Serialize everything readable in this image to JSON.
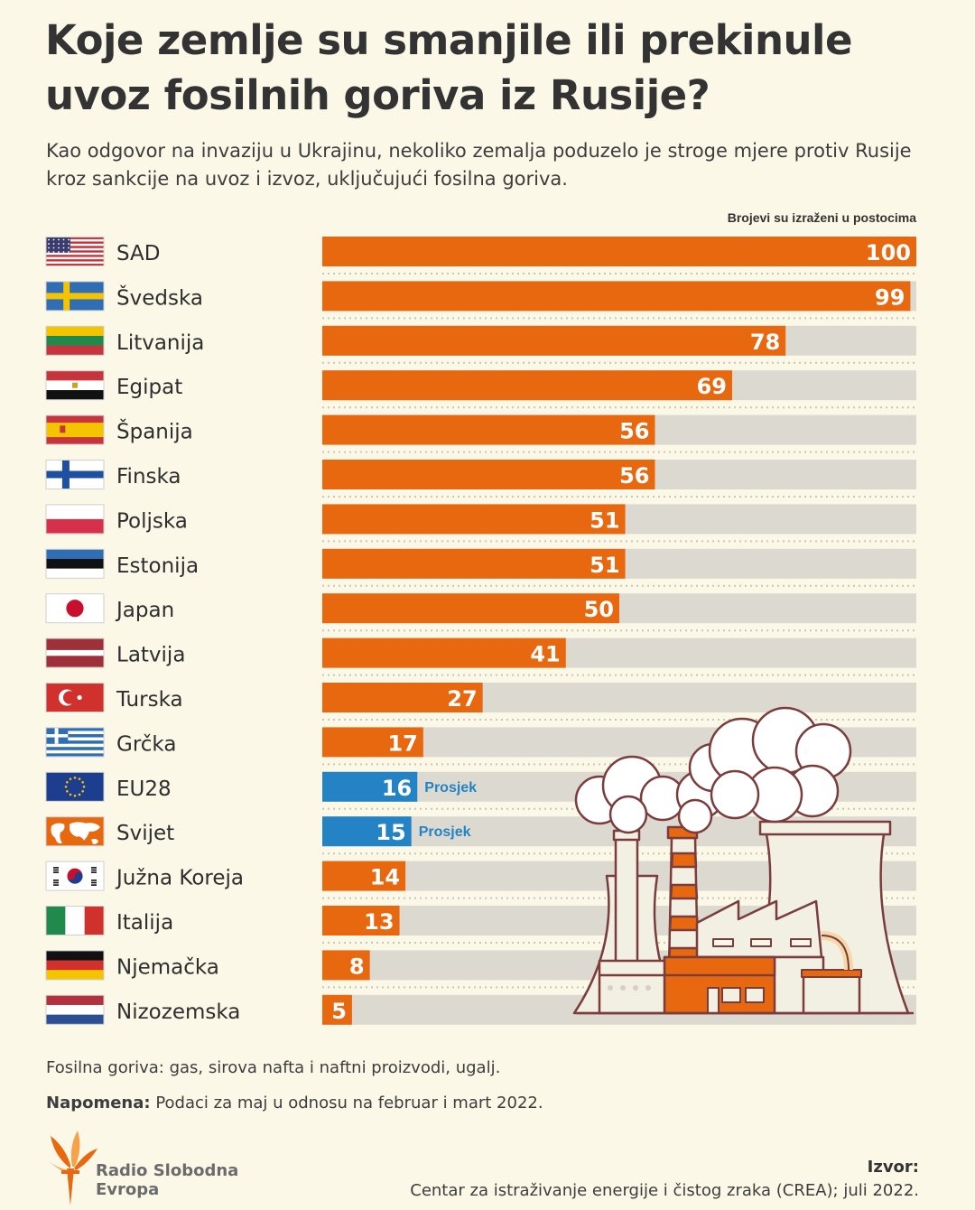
{
  "title": "Koje zemlje su smanjile ili prekinule uvoz fosilnih goriva iz Rusije?",
  "subtitle": "Kao odgovor na invaziju u Ukrajinu, nekoliko zemalja poduzelo je stroge mjere protiv Rusije kroz sankcije na uvoz i izvoz, uključujući fosilna goriva.",
  "unit_note": "Brojevi su izraženi u postocima",
  "colors": {
    "bar": "#e8680f",
    "average_bar": "#2383c4",
    "track": "#dcdad0",
    "background": "#fbf8e8"
  },
  "chart_data": {
    "type": "bar",
    "orientation": "horizontal",
    "xlim": [
      0,
      100
    ],
    "categories": [
      "SAD",
      "Švedska",
      "Litvanija",
      "Egipat",
      "Španija",
      "Finska",
      "Poljska",
      "Estonija",
      "Japan",
      "Latvija",
      "Turska",
      "Grčka",
      "EU28",
      "Svijet",
      "Južna Koreja",
      "Italija",
      "Njemačka",
      "Nizozemska"
    ],
    "values": [
      100,
      99,
      78,
      69,
      56,
      56,
      51,
      51,
      50,
      41,
      27,
      17,
      16,
      15,
      14,
      13,
      8,
      5
    ],
    "flags": [
      "usa-flag",
      "sweden-flag",
      "lithuania-flag",
      "egypt-flag",
      "spain-flag",
      "finland-flag",
      "poland-flag",
      "estonia-flag",
      "japan-flag",
      "latvia-flag",
      "turkey-flag",
      "greece-flag",
      "eu-flag",
      "world-map-icon",
      "south-korea-flag",
      "italy-flag",
      "germany-flag",
      "netherlands-flag"
    ],
    "average_rows": [
      "EU28",
      "Svijet"
    ],
    "average_label": "Prosjek"
  },
  "footnote": "Fosilna goriva: gas, sirova nafta i naftni proizvodi, ugalj.",
  "note_label": "Napomena:",
  "note_text": "Podaci za maj u odnosu na februar i mart 2022.",
  "source_label": "Izvor:",
  "source_text": "Centar za istraživanje energije i čistog zraka (CREA); juli 2022.",
  "brand": {
    "line1": "Radio Slobodna",
    "line2": "Evropa"
  }
}
